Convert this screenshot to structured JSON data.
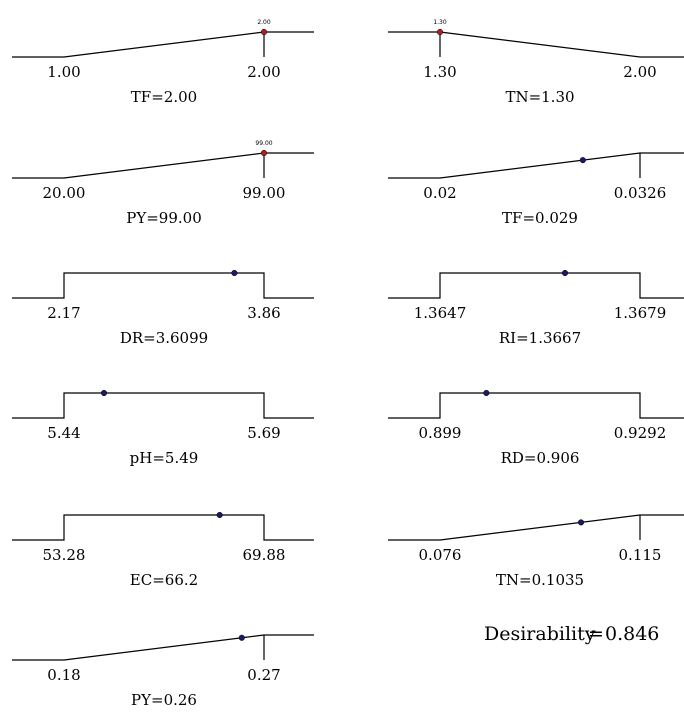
{
  "chart_data": [
    {
      "type": "desirability-ramp",
      "shape": "ramp-up",
      "low": 1.0,
      "high": 2.0,
      "low_label": "1.00",
      "high_label": "2.00",
      "value": 2.0,
      "caption": "TF=2.00",
      "marker_label": "2.00",
      "marker_color": "#b02020"
    },
    {
      "type": "desirability-ramp",
      "shape": "ramp-down",
      "low": 1.3,
      "high": 2.0,
      "low_label": "1.30",
      "high_label": "2.00",
      "value": 1.3,
      "caption": "TN=1.30",
      "marker_label": "1.30",
      "marker_color": "#b02020"
    },
    {
      "type": "desirability-ramp",
      "shape": "ramp-up",
      "low": 20.0,
      "high": 99.0,
      "low_label": "20.00",
      "high_label": "99.00",
      "value": 99.0,
      "caption": "PY=99.00",
      "marker_label": "99.00",
      "marker_color": "#b02020"
    },
    {
      "type": "desirability-ramp",
      "shape": "ramp-up",
      "low": 0.02,
      "high": 0.0326,
      "low_label": "0.02",
      "high_label": "0.0326",
      "value": 0.029,
      "caption": "TF=0.029",
      "marker_color": "#1a1a66"
    },
    {
      "type": "desirability-range",
      "shape": "range",
      "low": 2.17,
      "high": 3.86,
      "low_label": "2.17",
      "high_label": "3.86",
      "value": 3.6099,
      "caption": "DR=3.6099",
      "marker_color": "#1a1a66"
    },
    {
      "type": "desirability-range",
      "shape": "range",
      "low": 1.3647,
      "high": 1.3679,
      "low_label": "1.3647",
      "high_label": "1.3679",
      "value": 1.3667,
      "caption": "RI=1.3667",
      "marker_color": "#1a1a66"
    },
    {
      "type": "desirability-range",
      "shape": "range",
      "low": 5.44,
      "high": 5.69,
      "low_label": "5.44",
      "high_label": "5.69",
      "value": 5.49,
      "caption": "pH=5.49",
      "marker_color": "#1a1a66"
    },
    {
      "type": "desirability-range",
      "shape": "range",
      "low": 0.899,
      "high": 0.9292,
      "low_label": "0.899",
      "high_label": "0.9292",
      "value": 0.906,
      "caption": "RD=0.906",
      "marker_color": "#1a1a66"
    },
    {
      "type": "desirability-range",
      "shape": "range",
      "low": 53.28,
      "high": 69.88,
      "low_label": "53.28",
      "high_label": "69.88",
      "value": 66.2,
      "caption": "EC=66.2",
      "marker_color": "#1a1a66"
    },
    {
      "type": "desirability-ramp",
      "shape": "ramp-up",
      "low": 0.076,
      "high": 0.115,
      "low_label": "0.076",
      "high_label": "0.115",
      "value": 0.1035,
      "caption": "TN=0.1035",
      "marker_color": "#1a1a66"
    },
    {
      "type": "desirability-ramp",
      "shape": "ramp-up",
      "low": 0.18,
      "high": 0.27,
      "low_label": "0.18",
      "high_label": "0.27",
      "value": 0.26,
      "caption": "PY=0.26",
      "marker_color": "#1a1a66"
    }
  ],
  "desirability": {
    "label": "Desirability",
    "value": "0.846"
  }
}
